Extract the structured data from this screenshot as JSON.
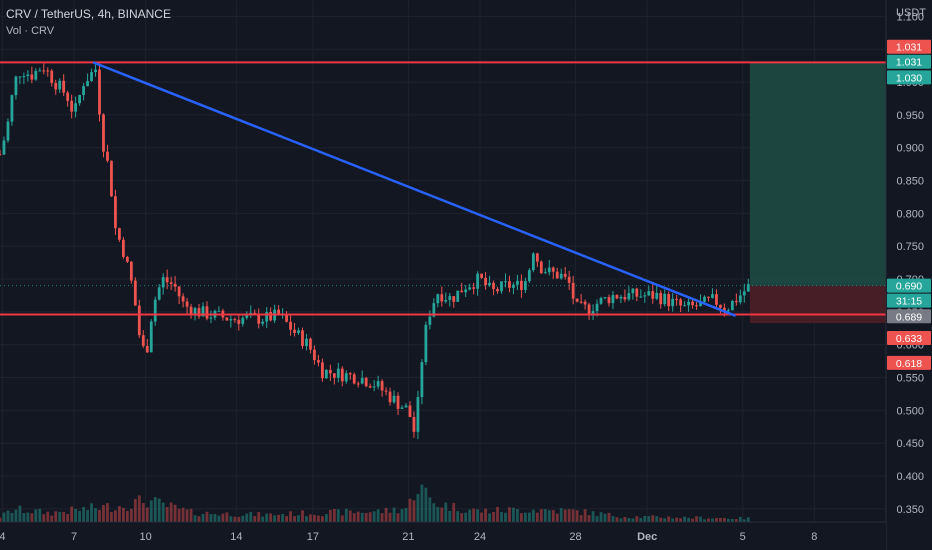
{
  "header": {
    "symbol_line": "CRV / TetherUS, 4h, BINANCE",
    "volume_line": "Vol · CRV",
    "currency": "USDT"
  },
  "colors": {
    "background": "#131722",
    "up": "#26a69a",
    "down": "#ef5350",
    "resistance_line": "#f23645",
    "trend_line": "#2962ff",
    "target_zone": "#1e4d44",
    "stop_zone": "#4a1f26"
  },
  "chart_data": {
    "type": "candlestick",
    "symbol": "CRV / TetherUS",
    "timeframe": "4h",
    "exchange": "BINANCE",
    "price_axis_ticks": [
      "1.100",
      "1.050",
      "1.000",
      "0.950",
      "0.900",
      "0.850",
      "0.800",
      "0.750",
      "0.700",
      "0.650",
      "0.600",
      "0.550",
      "0.500",
      "0.450",
      "0.400",
      "0.350"
    ],
    "price_axis_values": [
      1.1,
      1.05,
      1.0,
      0.95,
      0.9,
      0.85,
      0.8,
      0.75,
      0.7,
      0.65,
      0.6,
      0.55,
      0.5,
      0.45,
      0.4,
      0.35
    ],
    "time_axis_ticks": [
      "4",
      "7",
      "10",
      "14",
      "17",
      "21",
      "24",
      "28",
      "Dec",
      "5",
      "8"
    ],
    "time_axis_positions": [
      4,
      7,
      10,
      13.8,
      17,
      21,
      24,
      28,
      31,
      35,
      38
    ],
    "ylim": [
      0.33,
      1.125
    ],
    "xlim": [
      3.9,
      41
    ],
    "price_labels": [
      {
        "text": "1.031",
        "value": 1.031,
        "kind": "up"
      },
      {
        "text": "1.031",
        "value": 1.031,
        "kind": "down"
      },
      {
        "text": "1.030",
        "value": 1.03,
        "kind": "up"
      },
      {
        "text": "0.690",
        "value": 0.69,
        "kind": "up"
      },
      {
        "text": "31:15",
        "value": 0.69,
        "kind": "timer"
      },
      {
        "text": "0.689",
        "value": 0.689,
        "kind": "gray"
      },
      {
        "text": "0.633",
        "value": 0.633,
        "kind": "down"
      },
      {
        "text": "0.618",
        "value": 0.618,
        "kind": "down"
      }
    ],
    "horizontal_lines": [
      {
        "name": "resistance",
        "value": 1.03
      },
      {
        "name": "support",
        "value": 0.646
      }
    ],
    "trend_line": {
      "x1": 7.8,
      "y1": 1.03,
      "x2": 34.7,
      "y2": 0.644
    },
    "position_tool": {
      "x_start": 35.3,
      "x_end": 41,
      "entry": 0.69,
      "target": 1.03,
      "stop": 0.633
    },
    "price_path": [
      {
        "x": 3.9,
        "p": 0.89
      },
      {
        "x": 4.2,
        "p": 0.93
      },
      {
        "x": 4.5,
        "p": 1.0
      },
      {
        "x": 4.8,
        "p": 1.02
      },
      {
        "x": 5.2,
        "p": 1.01
      },
      {
        "x": 5.7,
        "p": 1.025
      },
      {
        "x": 6.2,
        "p": 1.0
      },
      {
        "x": 6.7,
        "p": 0.98
      },
      {
        "x": 7.0,
        "p": 0.95
      },
      {
        "x": 7.4,
        "p": 1.0
      },
      {
        "x": 7.9,
        "p": 1.02
      },
      {
        "x": 8.2,
        "p": 0.91
      },
      {
        "x": 8.5,
        "p": 0.86
      },
      {
        "x": 8.7,
        "p": 0.78
      },
      {
        "x": 9.1,
        "p": 0.74
      },
      {
        "x": 9.5,
        "p": 0.68
      },
      {
        "x": 9.7,
        "p": 0.62
      },
      {
        "x": 10.0,
        "p": 0.58
      },
      {
        "x": 10.3,
        "p": 0.66
      },
      {
        "x": 10.7,
        "p": 0.7
      },
      {
        "x": 11.2,
        "p": 0.69
      },
      {
        "x": 11.6,
        "p": 0.66
      },
      {
        "x": 12.2,
        "p": 0.65
      },
      {
        "x": 12.8,
        "p": 0.645
      },
      {
        "x": 13.5,
        "p": 0.64
      },
      {
        "x": 14.2,
        "p": 0.64
      },
      {
        "x": 15.0,
        "p": 0.64
      },
      {
        "x": 15.6,
        "p": 0.645
      },
      {
        "x": 16.2,
        "p": 0.62
      },
      {
        "x": 16.8,
        "p": 0.6
      },
      {
        "x": 17.4,
        "p": 0.56
      },
      {
        "x": 18.2,
        "p": 0.555
      },
      {
        "x": 19.0,
        "p": 0.55
      },
      {
        "x": 19.6,
        "p": 0.54
      },
      {
        "x": 20.1,
        "p": 0.525
      },
      {
        "x": 20.6,
        "p": 0.51
      },
      {
        "x": 21.0,
        "p": 0.5
      },
      {
        "x": 21.3,
        "p": 0.46
      },
      {
        "x": 21.5,
        "p": 0.56
      },
      {
        "x": 21.8,
        "p": 0.64
      },
      {
        "x": 22.2,
        "p": 0.68
      },
      {
        "x": 22.8,
        "p": 0.67
      },
      {
        "x": 23.4,
        "p": 0.69
      },
      {
        "x": 24.0,
        "p": 0.7
      },
      {
        "x": 24.5,
        "p": 0.68
      },
      {
        "x": 25.1,
        "p": 0.69
      },
      {
        "x": 25.6,
        "p": 0.69
      },
      {
        "x": 26.0,
        "p": 0.7
      },
      {
        "x": 26.2,
        "p": 0.75
      },
      {
        "x": 26.5,
        "p": 0.72
      },
      {
        "x": 26.9,
        "p": 0.71
      },
      {
        "x": 27.4,
        "p": 0.705
      },
      {
        "x": 27.8,
        "p": 0.69
      },
      {
        "x": 28.0,
        "p": 0.655
      },
      {
        "x": 28.5,
        "p": 0.655
      },
      {
        "x": 29.0,
        "p": 0.665
      },
      {
        "x": 29.6,
        "p": 0.675
      },
      {
        "x": 30.2,
        "p": 0.675
      },
      {
        "x": 30.8,
        "p": 0.675
      },
      {
        "x": 31.4,
        "p": 0.675
      },
      {
        "x": 32.0,
        "p": 0.665
      },
      {
        "x": 32.6,
        "p": 0.655
      },
      {
        "x": 33.2,
        "p": 0.66
      },
      {
        "x": 33.8,
        "p": 0.668
      },
      {
        "x": 34.3,
        "p": 0.655
      },
      {
        "x": 34.8,
        "p": 0.672
      },
      {
        "x": 35.3,
        "p": 0.69
      }
    ],
    "volume_path": [
      {
        "x": 3.9,
        "v": 0.15
      },
      {
        "x": 4.5,
        "v": 0.35
      },
      {
        "x": 6,
        "v": 0.25
      },
      {
        "x": 8,
        "v": 0.4
      },
      {
        "x": 9,
        "v": 0.45
      },
      {
        "x": 10,
        "v": 0.6
      },
      {
        "x": 12,
        "v": 0.25
      },
      {
        "x": 15,
        "v": 0.2
      },
      {
        "x": 17,
        "v": 0.25
      },
      {
        "x": 20,
        "v": 0.3
      },
      {
        "x": 21,
        "v": 0.4
      },
      {
        "x": 21.3,
        "v": 1.0
      },
      {
        "x": 21.6,
        "v": 0.9
      },
      {
        "x": 22,
        "v": 0.55
      },
      {
        "x": 23,
        "v": 0.4
      },
      {
        "x": 24,
        "v": 0.3
      },
      {
        "x": 26,
        "v": 0.35
      },
      {
        "x": 28,
        "v": 0.3
      },
      {
        "x": 30,
        "v": 0.15
      },
      {
        "x": 33,
        "v": 0.12
      },
      {
        "x": 35.3,
        "v": 0.1
      }
    ]
  }
}
